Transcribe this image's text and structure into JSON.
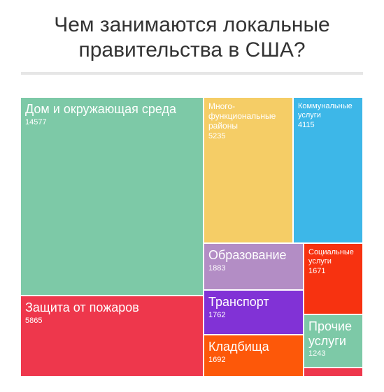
{
  "title": "Чем занимаются локальные правительства в США?",
  "chart_data": {
    "type": "treemap",
    "title": "Чем занимаются локальные правительства в США?",
    "items": [
      {
        "name": "Дом и окружающая среда",
        "value": 14577,
        "color": "#7dc9a7"
      },
      {
        "name": "Защита от пожаров",
        "value": 5865,
        "color": "#ee374c"
      },
      {
        "name": "Много-функциональные районы",
        "value": 5235,
        "color": "#f5cd66"
      },
      {
        "name": "Коммунальные услуги",
        "value": 4115,
        "color": "#3db7e8"
      },
      {
        "name": "Образование",
        "value": 1883,
        "color": "#b38dc5"
      },
      {
        "name": "Социальные услуги",
        "value": 1671,
        "color": "#f73210"
      },
      {
        "name": "Транспорт",
        "value": 1762,
        "color": "#8132d6"
      },
      {
        "name": "Кладбища",
        "value": 1692,
        "color": "#fd5809"
      },
      {
        "name": "Прочие услуги",
        "value": 1243,
        "color": "#7dc9a7"
      },
      {
        "name": "",
        "value": 180,
        "color": "#ee374c"
      }
    ]
  }
}
